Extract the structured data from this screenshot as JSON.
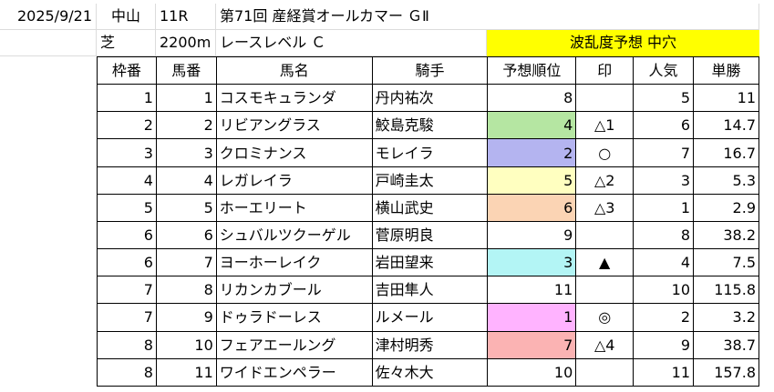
{
  "header": {
    "row1": {
      "date": "2025/9/21",
      "venue": "中山",
      "race_no": "11R",
      "race_name": "第71回 産経賞オールカマー ＧⅡ"
    },
    "row2": {
      "surface": "芝",
      "distance": "2200m",
      "race_level": "レースレベル Ｃ",
      "upset_forecast": "波乱度予想 中穴"
    }
  },
  "columns": [
    "枠番",
    "馬番",
    "馬名",
    "騎手",
    "予想順位",
    "印",
    "人気",
    "単勝"
  ],
  "rows": [
    {
      "waku": "1",
      "umaban": "1",
      "name": "コスモキュランダ",
      "jockey": "丹内祐次",
      "rank": "8",
      "mark": "",
      "pop": "5",
      "odds": "11",
      "rank_color": ""
    },
    {
      "waku": "2",
      "umaban": "2",
      "name": "リビアングラス",
      "jockey": "鮫島克駿",
      "rank": "4",
      "mark": "△1",
      "pop": "6",
      "odds": "14.7",
      "rank_color": "#b5e6a2"
    },
    {
      "waku": "3",
      "umaban": "3",
      "name": "クロミナンス",
      "jockey": "モレイラ",
      "rank": "2",
      "mark": "○",
      "pop": "7",
      "odds": "16.7",
      "rank_color": "#b4b4f0"
    },
    {
      "waku": "4",
      "umaban": "4",
      "name": "レガレイラ",
      "jockey": "戸崎圭太",
      "rank": "5",
      "mark": "△2",
      "pop": "3",
      "odds": "5.3",
      "rank_color": "#ffffc0"
    },
    {
      "waku": "5",
      "umaban": "5",
      "name": "ホーエリート",
      "jockey": "横山武史",
      "rank": "6",
      "mark": "△3",
      "pop": "1",
      "odds": "2.9",
      "rank_color": "#fbd4b4"
    },
    {
      "waku": "6",
      "umaban": "6",
      "name": "シュバルツクーゲル",
      "jockey": "菅原明良",
      "rank": "9",
      "mark": "",
      "pop": "8",
      "odds": "38.2",
      "rank_color": ""
    },
    {
      "waku": "6",
      "umaban": "7",
      "name": "ヨーホーレイク",
      "jockey": "岩田望来",
      "rank": "3",
      "mark": "▲",
      "pop": "4",
      "odds": "7.5",
      "rank_color": "#b3f5f5"
    },
    {
      "waku": "7",
      "umaban": "8",
      "name": "リカンカブール",
      "jockey": "吉田隼人",
      "rank": "11",
      "mark": "",
      "pop": "10",
      "odds": "115.8",
      "rank_color": ""
    },
    {
      "waku": "7",
      "umaban": "9",
      "name": "ドゥラドーレス",
      "jockey": "ルメール",
      "rank": "1",
      "mark": "◎",
      "pop": "2",
      "odds": "3.2",
      "rank_color": "#ffb3ff"
    },
    {
      "waku": "8",
      "umaban": "10",
      "name": "フェアエールング",
      "jockey": "津村明秀",
      "rank": "7",
      "mark": "△4",
      "pop": "9",
      "odds": "38.7",
      "rank_color": "#fbb3b3"
    },
    {
      "waku": "8",
      "umaban": "11",
      "name": "ワイドエンペラー",
      "jockey": "佐々木大",
      "rank": "10",
      "mark": "",
      "pop": "11",
      "odds": "157.8",
      "rank_color": ""
    }
  ],
  "colors": {
    "upset_forecast_bg": "#ffff00",
    "grid_line": "#dcdcdc"
  }
}
